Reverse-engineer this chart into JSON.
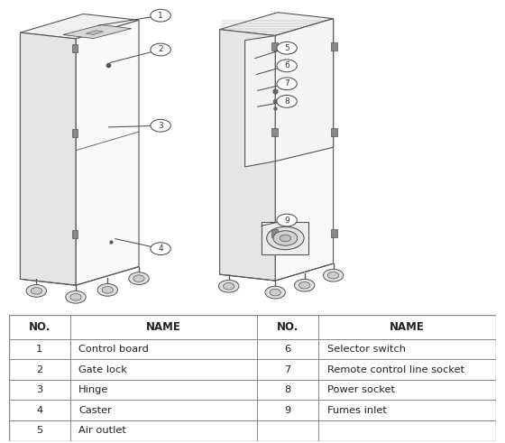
{
  "bg_color": "#ffffff",
  "line_color": "#555555",
  "table_border_color": "#888888",
  "table_data": {
    "headers": [
      "NO.",
      "NAME",
      "NO.",
      "NAME"
    ],
    "rows": [
      [
        "1",
        "Control board",
        "6",
        "Selector switch"
      ],
      [
        "2",
        "Gate lock",
        "7",
        "Remote control line socket"
      ],
      [
        "3",
        "Hinge",
        "8",
        "Power socket"
      ],
      [
        "4",
        "Caster",
        "9",
        "Fumes inlet"
      ],
      [
        "5",
        "Air outlet",
        "",
        ""
      ]
    ]
  }
}
